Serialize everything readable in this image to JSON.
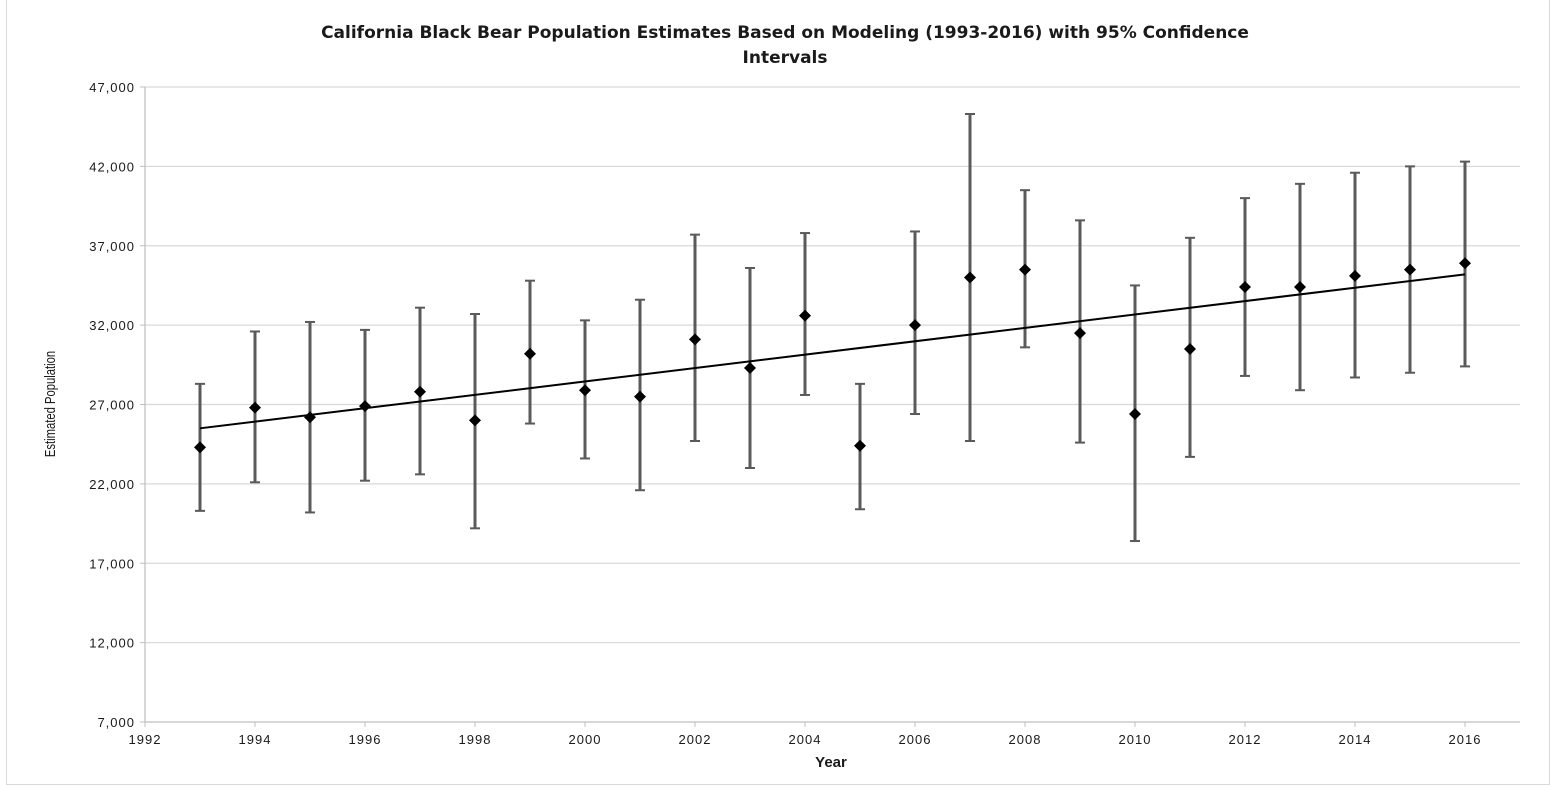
{
  "chart_data": {
    "type": "scatter",
    "title": "California Black Bear Population Estimates Based on Modeling (1993-2016) with 95% Confidence Intervals",
    "title_lines": [
      "California Black Bear Population Estimates Based on Modeling (1993-2016) with 95% Confidence",
      "Intervals"
    ],
    "xlabel": "Year",
    "ylabel": "Estimated Population",
    "xlim": [
      1992,
      2017
    ],
    "ylim": [
      7000,
      47000
    ],
    "x_ticks": [
      1992,
      1994,
      1996,
      1998,
      2000,
      2002,
      2004,
      2006,
      2008,
      2010,
      2012,
      2014,
      2016
    ],
    "y_ticks": [
      7000,
      12000,
      17000,
      22000,
      27000,
      32000,
      37000,
      42000,
      47000
    ],
    "x_tick_labels": [
      "1992",
      "1994",
      "1996",
      "1998",
      "2000",
      "2002",
      "2004",
      "2006",
      "2008",
      "2010",
      "2012",
      "2014",
      "2016"
    ],
    "y_tick_labels": [
      "7,000",
      "12,000",
      "17,000",
      "22,000",
      "27,000",
      "32,000",
      "37,000",
      "42,000",
      "47,000"
    ],
    "grid": "horizontal",
    "legend": "none",
    "series": [
      {
        "x": [
          1993,
          1994,
          1995,
          1996,
          1997,
          1998,
          1999,
          2000,
          2001,
          2002,
          2003,
          2004,
          2005,
          2006,
          2007,
          2008,
          2009,
          2010,
          2011,
          2012,
          2013,
          2014,
          2015,
          2016
        ],
        "y": [
          24300,
          26800,
          26200,
          26900,
          27800,
          26000,
          30200,
          27900,
          27500,
          31100,
          29300,
          32600,
          24400,
          32000,
          35000,
          35500,
          31500,
          26400,
          30500,
          34400,
          34400,
          35100,
          35500,
          35900
        ],
        "lower": [
          20300,
          22100,
          20200,
          22200,
          22600,
          19200,
          25800,
          23600,
          21600,
          24700,
          23000,
          27600,
          20400,
          26400,
          24700,
          30600,
          24600,
          18400,
          23700,
          28800,
          27900,
          28700,
          29000,
          29400
        ],
        "upper": [
          28300,
          31600,
          32200,
          31700,
          33100,
          32700,
          34800,
          32300,
          33600,
          37700,
          35600,
          37800,
          28300,
          37900,
          45300,
          40500,
          38600,
          34500,
          37500,
          40000,
          40900,
          41600,
          42000,
          42300
        ]
      }
    ],
    "trendline": {
      "type": "linear",
      "x": [
        1993,
        2016
      ],
      "y": [
        25500,
        35200
      ]
    },
    "colors": {
      "marker": "#000000",
      "error_bar": "#5a5a5a",
      "trendline": "#000000",
      "grid": "#d9d9d9",
      "axis": "#bfbfbf"
    }
  }
}
